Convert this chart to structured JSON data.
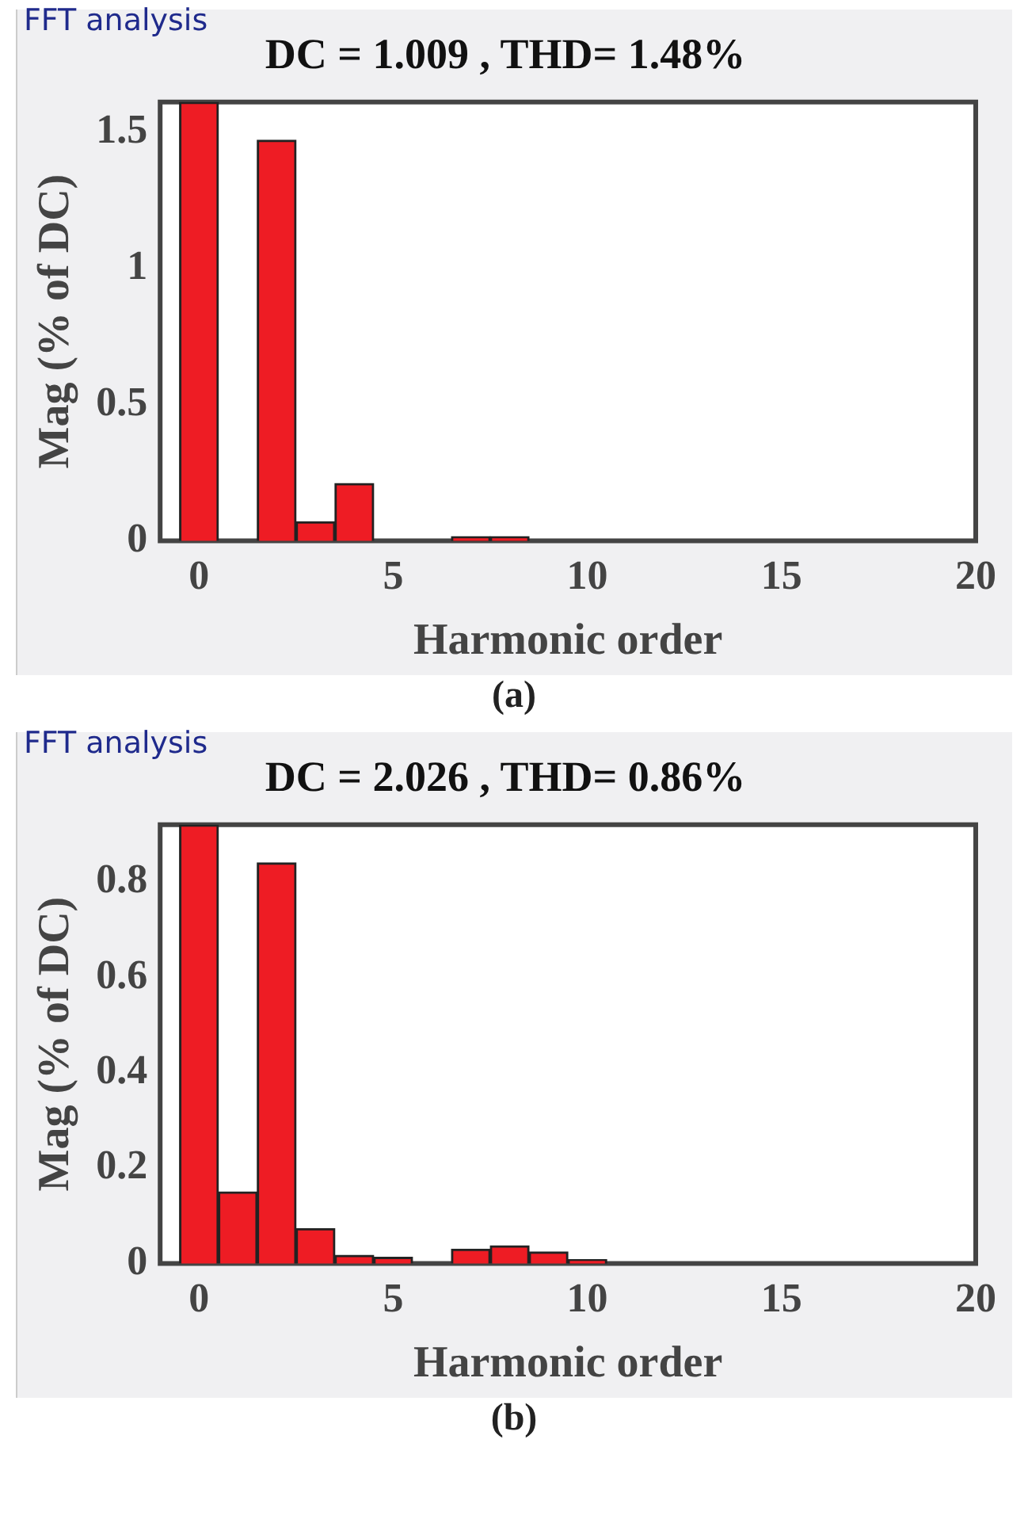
{
  "chart_data": [
    {
      "type": "bar",
      "title": "DC = 1.009 , THD= 1.48%",
      "xlabel": "Harmonic order",
      "ylabel": "Mag (% of DC)",
      "annotations": [
        "FFT analysis",
        "(a)"
      ],
      "x": [
        0,
        1,
        2,
        3,
        4,
        5,
        6,
        7,
        8,
        9,
        10,
        11,
        12,
        13,
        14,
        15,
        16,
        17,
        18,
        19
      ],
      "series": [
        {
          "color": "#ee1c24",
          "values": [
            1.61,
            0,
            1.47,
            0.07,
            0.21,
            0,
            0,
            0.015,
            0.015,
            0,
            0,
            0,
            0,
            0,
            0,
            0,
            0,
            0,
            0,
            0
          ]
        }
      ],
      "xlim": [
        -1,
        20
      ],
      "xticks": [
        0,
        5,
        10,
        15,
        20
      ],
      "ylim": [
        0,
        1.61
      ],
      "yticks": [
        0,
        0.5,
        1,
        1.5
      ],
      "grid": false,
      "legend": false
    },
    {
      "type": "bar",
      "title": "DC = 2.026 , THD= 0.86%",
      "xlabel": "Harmonic order",
      "ylabel": "Mag (% of DC)",
      "annotations": [
        "FFT analysis",
        "(b)"
      ],
      "x": [
        0,
        1,
        2,
        3,
        4,
        5,
        6,
        7,
        8,
        9,
        10,
        11,
        12,
        13,
        14,
        15,
        16,
        17,
        18,
        19
      ],
      "series": [
        {
          "color": "#ee1c24",
          "values": [
            0.92,
            0.15,
            0.84,
            0.073,
            0.017,
            0.013,
            0,
            0.03,
            0.037,
            0.024,
            0.008,
            0,
            0,
            0,
            0,
            0,
            0,
            0,
            0,
            0
          ]
        }
      ],
      "xlim": [
        -1,
        20
      ],
      "xticks": [
        0,
        5,
        10,
        15,
        20
      ],
      "ylim": [
        0,
        0.92
      ],
      "yticks": [
        0,
        0.2,
        0.4,
        0.6,
        0.8
      ],
      "grid": false,
      "legend": false
    }
  ]
}
